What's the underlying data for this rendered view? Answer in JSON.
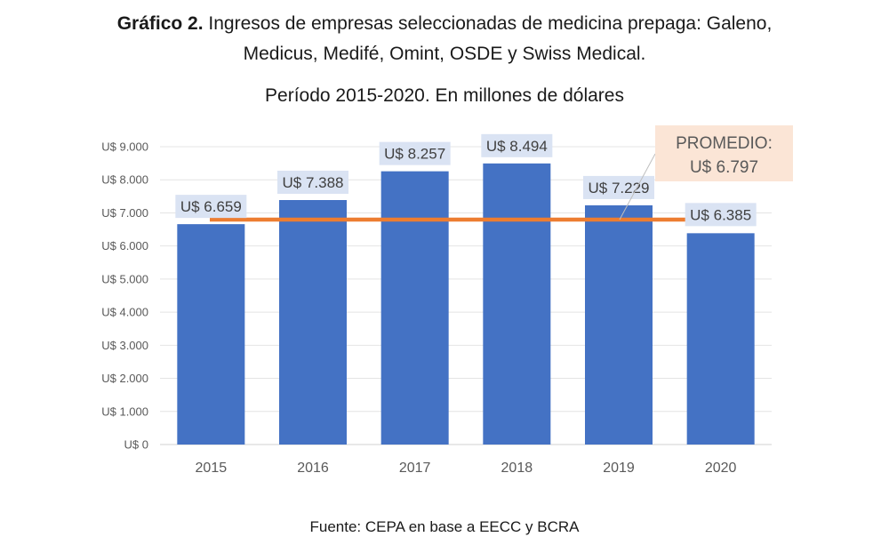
{
  "title": {
    "prefix": "Gráfico 2.",
    "line1": "Ingresos de empresas seleccionadas de medicina prepaga: Galeno,",
    "line2": "Medicus, Medifé, Omint, OSDE y Swiss Medical."
  },
  "subtitle": "Período 2015-2020. En millones de dólares",
  "source": "Fuente: CEPA en base a EECC y BCRA",
  "chart_data": {
    "type": "bar",
    "categories": [
      "2015",
      "2016",
      "2017",
      "2018",
      "2019",
      "2020"
    ],
    "values": [
      6659,
      7388,
      8257,
      8494,
      7229,
      6385
    ],
    "data_labels": [
      "U$ 6.659",
      "U$ 7.388",
      "U$ 8.257",
      "U$ 8.494",
      "U$ 7.229",
      "U$ 6.385"
    ],
    "ylim": [
      0,
      9000
    ],
    "yticks": [
      0,
      1000,
      2000,
      3000,
      4000,
      5000,
      6000,
      7000,
      8000,
      9000
    ],
    "ytick_labels": [
      "U$ 0",
      "U$ 1.000",
      "U$ 2.000",
      "U$ 3.000",
      "U$ 4.000",
      "U$ 5.000",
      "U$ 6.000",
      "U$ 7.000",
      "U$ 8.000",
      "U$ 9.000"
    ],
    "reference_line": {
      "value": 6797,
      "label_line1": "PROMEDIO:",
      "label_line2": "U$ 6.797",
      "color": "#ED7D31"
    },
    "bar_color": "#4472C4",
    "label_bg_color": "#DAE3F3",
    "avg_label_bg_color": "#FBE5D6",
    "grid": true,
    "legend": "none"
  }
}
